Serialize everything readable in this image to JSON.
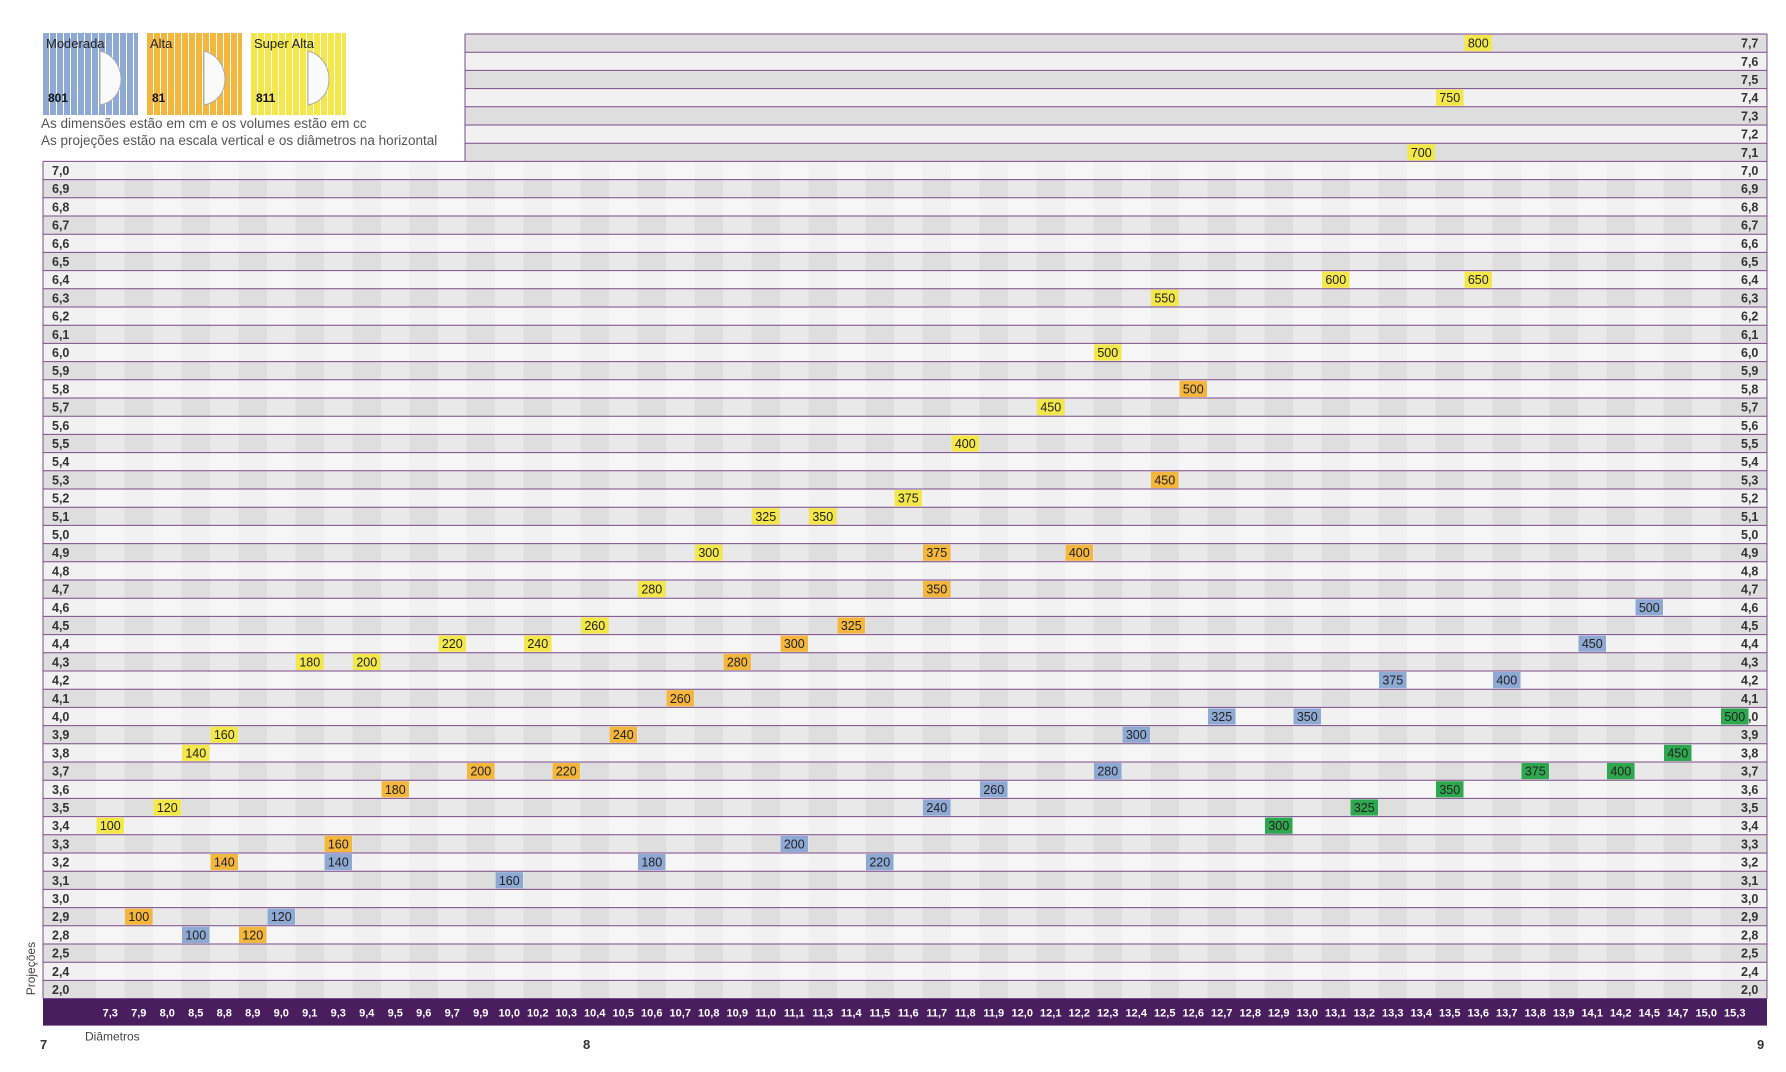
{
  "legend": [
    {
      "label": "Moderada",
      "code": "801",
      "color": "#8eaad4"
    },
    {
      "label": "Alta",
      "code": "81",
      "color": "#f4b63c"
    },
    {
      "label": "Super Alta",
      "code": "811",
      "color": "#f4e74a"
    }
  ],
  "notes": [
    "As dimensões estão em cm e os volumes estão em cc",
    "As projeções estão na escala vertical e os diâmetros na horizontal"
  ],
  "pages": {
    "left": "7",
    "mid": "8",
    "right": "9"
  },
  "colors": {
    "header_bar": "#4a1d5e",
    "row_border": "#7b4a89",
    "moderada": "#8eaad4",
    "alta": "#f4b63c",
    "super_alta": "#f4e74a",
    "green": "#2ea84f"
  },
  "chart_data": {
    "type": "table",
    "xlabel": "Diâmetros",
    "ylabel": "Projeções",
    "x": [
      "7,3",
      "7,9",
      "8,0",
      "8,5",
      "8,8",
      "8,9",
      "9,0",
      "9,1",
      "9,3",
      "9,4",
      "9,5",
      "9,6",
      "9,7",
      "9,9",
      "10,0",
      "10,2",
      "10,3",
      "10,4",
      "10,5",
      "10,6",
      "10,7",
      "10,8",
      "10,9",
      "11,0",
      "11,1",
      "11,3",
      "11,4",
      "11,5",
      "11,6",
      "11,7",
      "11,8",
      "11,9",
      "12,0",
      "12,1",
      "12,2",
      "12,3",
      "12,4",
      "12,5",
      "12,6",
      "12,7",
      "12,8",
      "12,9",
      "13,0",
      "13,1",
      "13,2",
      "13,3",
      "13,4",
      "13,5",
      "13,6",
      "13,7",
      "13,8",
      "13,9",
      "14,1",
      "14,2",
      "14,5",
      "14,7",
      "15,0",
      "15,3"
    ],
    "y": [
      "7,7",
      "7,6",
      "7,5",
      "7,4",
      "7,3",
      "7,2",
      "7,1",
      "7,0",
      "6,9",
      "6,8",
      "6,7",
      "6,6",
      "6,5",
      "6,4",
      "6,3",
      "6,2",
      "6,1",
      "6,0",
      "5,9",
      "5,8",
      "5,7",
      "5,6",
      "5,5",
      "5,4",
      "5,3",
      "5,2",
      "5,1",
      "5,0",
      "4,9",
      "4,8",
      "4,7",
      "4,6",
      "4,5",
      "4,4",
      "4,3",
      "4,2",
      "4,1",
      "4,0",
      "3,9",
      "3,8",
      "3,7",
      "3,6",
      "3,5",
      "3,4",
      "3,3",
      "3,2",
      "3,1",
      "3,0",
      "2,9",
      "2,8",
      "2,5",
      "2,4",
      "2,0"
    ],
    "cells": [
      {
        "x": "13,6",
        "y": "7,7",
        "v": "800",
        "s": "super_alta"
      },
      {
        "x": "13,5",
        "y": "7,4",
        "v": "750",
        "s": "super_alta"
      },
      {
        "x": "13,4",
        "y": "7,1",
        "v": "700",
        "s": "super_alta"
      },
      {
        "x": "13,1",
        "y": "6,4",
        "v": "600",
        "s": "super_alta"
      },
      {
        "x": "13,6",
        "y": "6,4",
        "v": "650",
        "s": "super_alta"
      },
      {
        "x": "12,5",
        "y": "6,3",
        "v": "550",
        "s": "super_alta"
      },
      {
        "x": "12,3",
        "y": "6,0",
        "v": "500",
        "s": "super_alta"
      },
      {
        "x": "12,6",
        "y": "5,8",
        "v": "500",
        "s": "alta"
      },
      {
        "x": "12,1",
        "y": "5,7",
        "v": "450",
        "s": "super_alta"
      },
      {
        "x": "11,8",
        "y": "5,5",
        "v": "400",
        "s": "super_alta"
      },
      {
        "x": "12,5",
        "y": "5,3",
        "v": "450",
        "s": "alta"
      },
      {
        "x": "11,6",
        "y": "5,2",
        "v": "375",
        "s": "super_alta"
      },
      {
        "x": "11,0",
        "y": "5,1",
        "v": "325",
        "s": "super_alta"
      },
      {
        "x": "11,3",
        "y": "5,1",
        "v": "350",
        "s": "super_alta"
      },
      {
        "x": "10,8",
        "y": "4,9",
        "v": "300",
        "s": "super_alta"
      },
      {
        "x": "11,7",
        "y": "4,9",
        "v": "375",
        "s": "alta"
      },
      {
        "x": "12,2",
        "y": "4,9",
        "v": "400",
        "s": "alta"
      },
      {
        "x": "10,6",
        "y": "4,7",
        "v": "280",
        "s": "super_alta"
      },
      {
        "x": "11,7",
        "y": "4,7",
        "v": "350",
        "s": "alta"
      },
      {
        "x": "14,5",
        "y": "4,6",
        "v": "500",
        "s": "moderada"
      },
      {
        "x": "10,4",
        "y": "4,5",
        "v": "260",
        "s": "super_alta"
      },
      {
        "x": "11,4",
        "y": "4,5",
        "v": "325",
        "s": "alta"
      },
      {
        "x": "9,7",
        "y": "4,4",
        "v": "220",
        "s": "super_alta"
      },
      {
        "x": "10,2",
        "y": "4,4",
        "v": "240",
        "s": "super_alta"
      },
      {
        "x": "11,1",
        "y": "4,4",
        "v": "300",
        "s": "alta"
      },
      {
        "x": "14,1",
        "y": "4,4",
        "v": "450",
        "s": "moderada"
      },
      {
        "x": "9,1",
        "y": "4,3",
        "v": "180",
        "s": "super_alta"
      },
      {
        "x": "9,4",
        "y": "4,3",
        "v": "200",
        "s": "super_alta"
      },
      {
        "x": "10,9",
        "y": "4,3",
        "v": "280",
        "s": "alta"
      },
      {
        "x": "13,3",
        "y": "4,2",
        "v": "375",
        "s": "moderada"
      },
      {
        "x": "13,7",
        "y": "4,2",
        "v": "400",
        "s": "moderada"
      },
      {
        "x": "10,7",
        "y": "4,1",
        "v": "260",
        "s": "alta"
      },
      {
        "x": "12,7",
        "y": "4,0",
        "v": "325",
        "s": "moderada"
      },
      {
        "x": "13,0",
        "y": "4,0",
        "v": "350",
        "s": "moderada"
      },
      {
        "x": "15,3",
        "y": "4,0",
        "v": "500",
        "s": "green"
      },
      {
        "x": "8,8",
        "y": "3,9",
        "v": "160",
        "s": "super_alta"
      },
      {
        "x": "10,5",
        "y": "3,9",
        "v": "240",
        "s": "alta"
      },
      {
        "x": "12,4",
        "y": "3,9",
        "v": "300",
        "s": "moderada"
      },
      {
        "x": "8,5",
        "y": "3,8",
        "v": "140",
        "s": "super_alta"
      },
      {
        "x": "14,7",
        "y": "3,8",
        "v": "450",
        "s": "green"
      },
      {
        "x": "9,9",
        "y": "3,7",
        "v": "200",
        "s": "alta"
      },
      {
        "x": "10,3",
        "y": "3,7",
        "v": "220",
        "s": "alta"
      },
      {
        "x": "12,3",
        "y": "3,7",
        "v": "280",
        "s": "moderada"
      },
      {
        "x": "13,8",
        "y": "3,7",
        "v": "375",
        "s": "green"
      },
      {
        "x": "14,2",
        "y": "3,7",
        "v": "400",
        "s": "green"
      },
      {
        "x": "9,5",
        "y": "3,6",
        "v": "180",
        "s": "alta"
      },
      {
        "x": "11,9",
        "y": "3,6",
        "v": "260",
        "s": "moderada"
      },
      {
        "x": "13,5",
        "y": "3,6",
        "v": "350",
        "s": "green"
      },
      {
        "x": "8,0",
        "y": "3,5",
        "v": "120",
        "s": "super_alta"
      },
      {
        "x": "11,7",
        "y": "3,5",
        "v": "240",
        "s": "moderada"
      },
      {
        "x": "13,2",
        "y": "3,5",
        "v": "325",
        "s": "green"
      },
      {
        "x": "7,3",
        "y": "3,4",
        "v": "100",
        "s": "super_alta"
      },
      {
        "x": "12,9",
        "y": "3,4",
        "v": "300",
        "s": "green"
      },
      {
        "x": "9,3",
        "y": "3,3",
        "v": "160",
        "s": "alta"
      },
      {
        "x": "11,1",
        "y": "3,3",
        "v": "200",
        "s": "moderada"
      },
      {
        "x": "8,8",
        "y": "3,2",
        "v": "140",
        "s": "alta"
      },
      {
        "x": "9,3",
        "y": "3,2",
        "v": "140",
        "s": "moderada"
      },
      {
        "x": "10,6",
        "y": "3,2",
        "v": "180",
        "s": "moderada"
      },
      {
        "x": "11,5",
        "y": "3,2",
        "v": "220",
        "s": "moderada"
      },
      {
        "x": "10,0",
        "y": "3,1",
        "v": "160",
        "s": "moderada"
      },
      {
        "x": "7,9",
        "y": "2,9",
        "v": "100",
        "s": "alta"
      },
      {
        "x": "9,0",
        "y": "2,9",
        "v": "120",
        "s": "moderada"
      },
      {
        "x": "8,5",
        "y": "2,8",
        "v": "100",
        "s": "moderada"
      },
      {
        "x": "8,9",
        "y": "2,8",
        "v": "120",
        "s": "alta"
      }
    ]
  }
}
